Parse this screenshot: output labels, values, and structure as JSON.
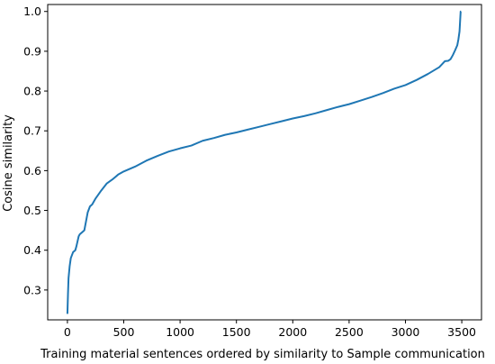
{
  "chart_data": {
    "type": "line",
    "title": "",
    "xlabel": "Training material sentences ordered by similarity to Sample communication",
    "ylabel": "Cosine similarity",
    "xlim": [
      -175,
      3675
    ],
    "ylim": [
      0.225,
      1.0175
    ],
    "xticks": [
      0,
      500,
      1000,
      1500,
      2000,
      2500,
      3000,
      3500
    ],
    "yticks": [
      0.3,
      0.4,
      0.5,
      0.6,
      0.7,
      0.8,
      0.9,
      1.0
    ],
    "xtick_labels": [
      "0",
      "500",
      "1000",
      "1500",
      "2000",
      "2500",
      "3000",
      "3500"
    ],
    "ytick_labels": [
      "0.3",
      "0.4",
      "0.5",
      "0.6",
      "0.7",
      "0.8",
      "0.9",
      "1.0"
    ],
    "grid": false,
    "legend": "none",
    "series": [
      {
        "color": "#1f77b4",
        "x": [
          0,
          5,
          10,
          20,
          30,
          50,
          70,
          80,
          100,
          110,
          130,
          150,
          160,
          180,
          200,
          220,
          250,
          300,
          350,
          400,
          450,
          500,
          600,
          700,
          800,
          900,
          1000,
          1100,
          1200,
          1300,
          1400,
          1500,
          1600,
          1700,
          1800,
          1900,
          2000,
          2100,
          2200,
          2300,
          2400,
          2500,
          2600,
          2700,
          2800,
          2900,
          3000,
          3100,
          3200,
          3300,
          3350,
          3380,
          3400,
          3420,
          3440,
          3460,
          3470,
          3480,
          3485,
          3490,
          3493
        ],
        "y": [
          0.24,
          0.29,
          0.33,
          0.36,
          0.38,
          0.395,
          0.4,
          0.41,
          0.435,
          0.44,
          0.445,
          0.45,
          0.465,
          0.495,
          0.51,
          0.515,
          0.53,
          0.55,
          0.568,
          0.578,
          0.59,
          0.598,
          0.61,
          0.625,
          0.637,
          0.648,
          0.656,
          0.663,
          0.675,
          0.682,
          0.69,
          0.696,
          0.703,
          0.71,
          0.717,
          0.724,
          0.731,
          0.737,
          0.744,
          0.752,
          0.76,
          0.767,
          0.776,
          0.785,
          0.795,
          0.806,
          0.815,
          0.828,
          0.843,
          0.86,
          0.875,
          0.876,
          0.88,
          0.89,
          0.902,
          0.915,
          0.93,
          0.95,
          0.975,
          1.0,
          1.0
        ]
      }
    ]
  }
}
